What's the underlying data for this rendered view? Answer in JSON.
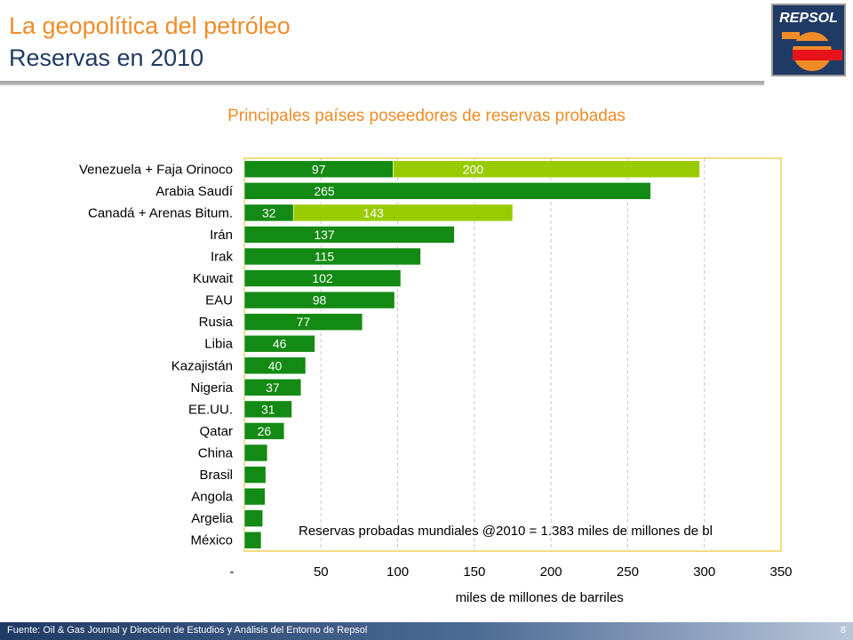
{
  "header": {
    "title_line1": "La geopolítica del petróleo",
    "title_line2": "Reservas en 2010",
    "logo_text": "REPSOL"
  },
  "colors": {
    "accent_orange": "#f08c28",
    "navy": "#1f3a64",
    "bar_dark_green": "#138a13",
    "bar_light_green": "#99cc00",
    "plot_border": "#e6b800"
  },
  "chart_data": {
    "type": "bar",
    "orientation": "horizontal",
    "stacked": true,
    "title": "Principales países poseedores de reservas probadas",
    "xlabel": "miles de millones de barriles",
    "ylabel": "",
    "xlim": [
      0,
      350
    ],
    "x_ticks": [
      "-",
      "50",
      "100",
      "150",
      "200",
      "250",
      "300",
      "350"
    ],
    "x_tick_values": [
      0,
      50,
      100,
      150,
      200,
      250,
      300,
      350
    ],
    "grid": "vertical dashed",
    "categories": [
      "Venezuela + Faja Orinoco",
      "Arabia Saudí",
      "Canadá + Arenas Bitum.",
      "Irán",
      "Irak",
      "Kuwait",
      "EAU",
      "Rusia",
      "Libia",
      "Kazajistán",
      "Nigeria",
      "EE.UU.",
      "Qatar",
      "China",
      "Brasil",
      "Angola",
      "Argelia",
      "México"
    ],
    "series": [
      {
        "values": [
          97,
          265,
          32,
          137,
          115,
          102,
          98,
          77,
          46,
          40,
          37,
          31,
          26,
          15,
          14,
          13.5,
          12,
          11
        ],
        "labels": [
          "97",
          "265",
          "32",
          "137",
          "115",
          "102",
          "98",
          "77",
          "46",
          "40",
          "37",
          "31",
          "26",
          "",
          "",
          "",
          "",
          ""
        ]
      },
      {
        "values": [
          200,
          0,
          143,
          0,
          0,
          0,
          0,
          0,
          0,
          0,
          0,
          0,
          0,
          0,
          0,
          0,
          0,
          0
        ],
        "labels": [
          "200",
          "",
          "143",
          "",
          "",
          "",
          "",
          "",
          "",
          "",
          "",
          "",
          "",
          "",
          "",
          "",
          "",
          ""
        ]
      }
    ],
    "annotation": "Reservas probadas mundiales @2010 = 1.383 miles de millones de bl"
  },
  "footer": {
    "source": "Fuente: Oil & Gas Journal y Dirección de Estudios y Análisis del Entorno de Repsol",
    "page_number": "8"
  }
}
